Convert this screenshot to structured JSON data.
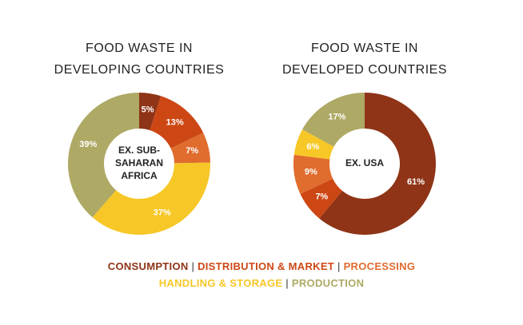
{
  "colors": {
    "consumption": "#8f3417",
    "distribution": "#cd4715",
    "processing": "#e06c2e",
    "handling": "#f6c726",
    "production": "#aea965"
  },
  "chart_data": [
    {
      "type": "pie",
      "title": [
        "FOOD WASTE IN",
        "DEVELOPING COUNTRIES"
      ],
      "center_label": [
        "EX. SUB-",
        "SAHARAN",
        "AFRICA"
      ],
      "slices": [
        {
          "label": "Consumption",
          "key": "consumption",
          "value": 5,
          "text": "5%"
        },
        {
          "label": "Distribution & Market",
          "key": "distribution",
          "value": 13,
          "text": "13%"
        },
        {
          "label": "Processing",
          "key": "processing",
          "value": 7,
          "text": "7%"
        },
        {
          "label": "Handling & Storage",
          "key": "handling",
          "value": 37,
          "text": "37%"
        },
        {
          "label": "Production",
          "key": "production",
          "value": 39,
          "text": "39%"
        }
      ]
    },
    {
      "type": "pie",
      "title": [
        "FOOD WASTE IN",
        "DEVELOPED COUNTRIES"
      ],
      "center_label": [
        "EX. USA"
      ],
      "slices": [
        {
          "label": "Consumption",
          "key": "consumption",
          "value": 61,
          "text": "61%"
        },
        {
          "label": "Distribution & Market",
          "key": "distribution",
          "value": 7,
          "text": "7%"
        },
        {
          "label": "Processing",
          "key": "processing",
          "value": 9,
          "text": "9%"
        },
        {
          "label": "Handling & Storage",
          "key": "handling",
          "value": 6,
          "text": "6%"
        },
        {
          "label": "Production",
          "key": "production",
          "value": 17,
          "text": "17%"
        }
      ]
    }
  ],
  "legend": {
    "line1": [
      {
        "label": "CONSUMPTION",
        "key": "consumption"
      },
      {
        "label": "DISTRIBUTION & MARKET",
        "key": "distribution"
      },
      {
        "label": "PROCESSING",
        "key": "processing"
      }
    ],
    "line2": [
      {
        "label": "HANDLING & STORAGE",
        "key": "handling"
      },
      {
        "label": "PRODUCTION",
        "key": "production"
      }
    ],
    "separator": "|"
  }
}
